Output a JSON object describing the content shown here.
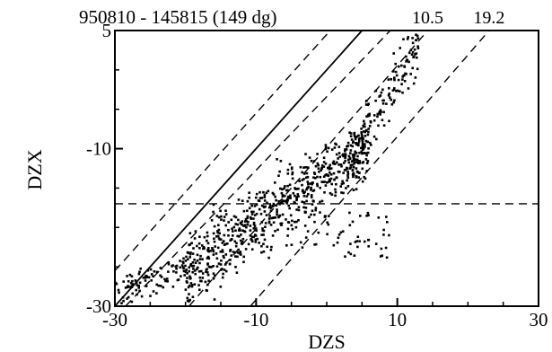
{
  "chart_data": {
    "type": "scatter",
    "title": "950810 - 145815 (149 dg)",
    "xlabel": "DZS",
    "ylabel": "DZX",
    "xlim": [
      -30,
      30
    ],
    "ylim": [
      -30,
      5
    ],
    "xticks": [
      -30,
      -10,
      10,
      30
    ],
    "yticks": [
      -30,
      -10,
      5
    ],
    "grid": false,
    "legend": "none",
    "colors": {
      "points": "#000000",
      "lines": "#000000",
      "background": "#ffffff"
    },
    "annotations": [
      {
        "text": "10.5",
        "x": 14.3,
        "y": 5
      },
      {
        "text": "19.2",
        "x": 23.0,
        "y": 5
      }
    ],
    "reference_lines": [
      {
        "style": "solid",
        "points": [
          [
            -30,
            -30
          ],
          [
            5,
            5
          ]
        ]
      },
      {
        "style": "dashed",
        "points": [
          [
            -30,
            -25.5
          ],
          [
            0.5,
            5
          ]
        ]
      },
      {
        "style": "dashed",
        "points": [
          [
            -28.5,
            -30
          ],
          [
            9,
            5
          ]
        ]
      },
      {
        "style": "dashed",
        "points": [
          [
            -19.5,
            -30
          ],
          [
            14.3,
            5
          ]
        ]
      },
      {
        "style": "dashed",
        "points": [
          [
            -10.8,
            -30
          ],
          [
            23,
            5
          ]
        ]
      },
      {
        "style": "dashed",
        "points": [
          [
            -30,
            -17
          ],
          [
            30,
            -17
          ]
        ]
      }
    ],
    "point_cloud": {
      "approx_count": 1000,
      "description_ranges": [
        {
          "x": [
            -30,
            -20
          ],
          "y": [
            -30,
            -25
          ]
        },
        {
          "x": [
            -20,
            5
          ],
          "y": [
            -27,
            -14
          ]
        },
        {
          "x": [
            -5,
            7
          ],
          "y": [
            -18,
            -5
          ]
        },
        {
          "x": [
            5,
            13
          ],
          "y": [
            -5,
            4
          ]
        }
      ]
    }
  }
}
